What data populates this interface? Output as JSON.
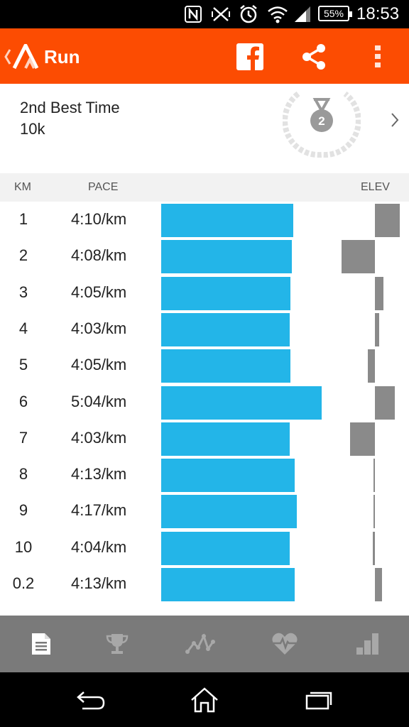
{
  "status_bar": {
    "icons": [
      "nfc-icon",
      "vibrate-icon",
      "alarm-icon",
      "wifi-icon",
      "signal-icon"
    ],
    "battery": "55%",
    "time": "18:53"
  },
  "action_bar": {
    "title": "Run",
    "icons": [
      "strava-logo-icon",
      "facebook-icon",
      "share-icon",
      "overflow-menu-icon"
    ]
  },
  "achievement": {
    "title": "2nd Best Time",
    "distance": "10k",
    "medal_rank": "2"
  },
  "splits_header": {
    "km": "KM",
    "pace": "PACE",
    "elev": "ELEV"
  },
  "splits": [
    {
      "km": "1",
      "pace": "4:10/km"
    },
    {
      "km": "2",
      "pace": "4:08/km"
    },
    {
      "km": "3",
      "pace": "4:05/km"
    },
    {
      "km": "4",
      "pace": "4:03/km"
    },
    {
      "km": "5",
      "pace": "4:05/km"
    },
    {
      "km": "6",
      "pace": "5:04/km"
    },
    {
      "km": "7",
      "pace": "4:03/km"
    },
    {
      "km": "8",
      "pace": "4:13/km"
    },
    {
      "km": "9",
      "pace": "4:17/km"
    },
    {
      "km": "10",
      "pace": "4:04/km"
    },
    {
      "km": "0.2",
      "pace": "4:13/km"
    }
  ],
  "elevation_change_relative": [
    0.47,
    -0.63,
    0.16,
    0.08,
    -0.13,
    0.37,
    -0.47,
    -0.03,
    -0.03,
    -0.04,
    0.13
  ],
  "tab_bar": {
    "tabs": [
      "overview-icon",
      "trophy-icon",
      "analysis-icon",
      "heart-rate-icon",
      "splits-chart-icon"
    ],
    "active_index": 0
  },
  "nav_bar": {
    "buttons": [
      "back-nav-icon",
      "home-nav-icon",
      "recent-apps-icon"
    ]
  },
  "colors": {
    "brand": "#fc4c02",
    "pace_bar": "#23b5e8",
    "elev_bar": "#8a8a8a",
    "tab_bar": "#7a7a7a"
  }
}
